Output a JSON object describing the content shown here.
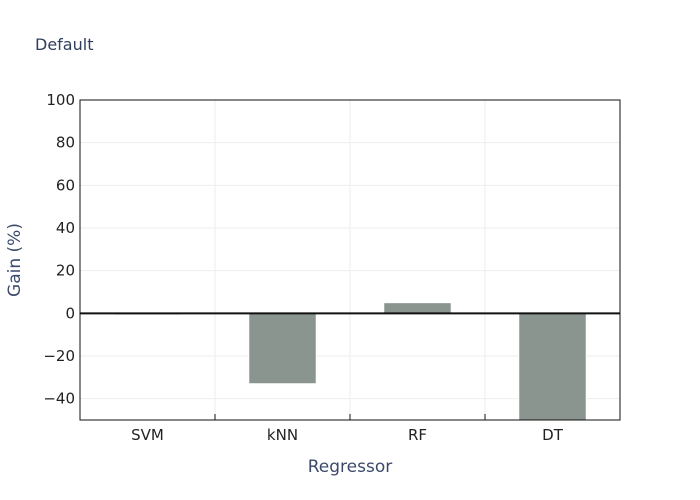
{
  "chart_data": {
    "type": "bar",
    "title": "Default",
    "xlabel": "Regressor",
    "ylabel": "Gain (%)",
    "categories": [
      "SVM",
      "kNN",
      "RF",
      "DT"
    ],
    "values": [
      -0.5,
      -33,
      5,
      -52
    ],
    "ylim": [
      -50,
      100
    ],
    "yticks": [
      -40,
      -20,
      0,
      20,
      40,
      60,
      80,
      100
    ],
    "ytick_labels": [
      "−40",
      "−20",
      "0",
      "20",
      "40",
      "60",
      "80",
      "100"
    ],
    "grid": true,
    "bar_color": "#8a9590"
  }
}
